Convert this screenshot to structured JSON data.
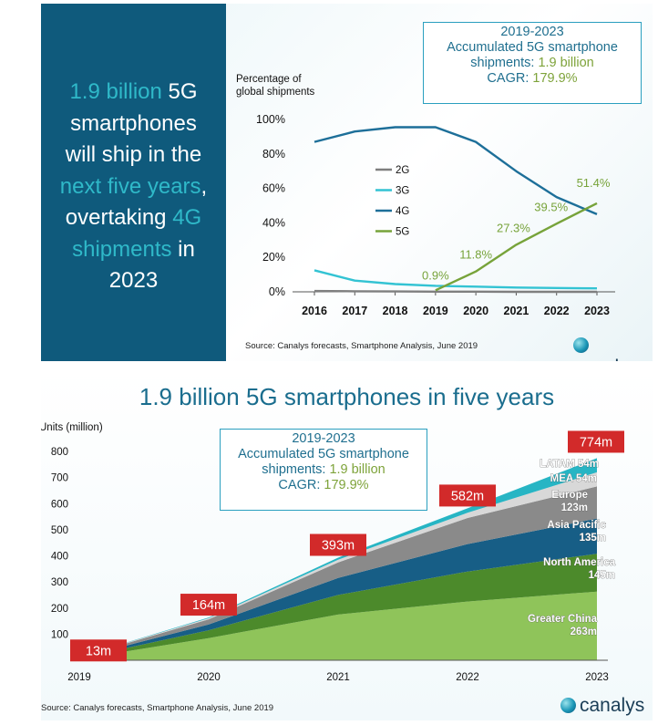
{
  "top": {
    "headline": [
      {
        "text": "1.9 billion",
        "hl": true
      },
      {
        "text": " 5G",
        "hl": false
      },
      {
        "br": true
      },
      {
        "text": "smartphones",
        "hl": false
      },
      {
        "br": true
      },
      {
        "text": "will ship in the",
        "hl": false
      },
      {
        "br": true
      },
      {
        "text": "next five years",
        "hl": true
      },
      {
        "text": ",",
        "hl": false
      },
      {
        "br": true
      },
      {
        "text": "overtaking ",
        "hl": false
      },
      {
        "text": "4G",
        "hl": true
      },
      {
        "br": true
      },
      {
        "text": "shipments",
        "hl": true
      },
      {
        "text": " in",
        "hl": false
      },
      {
        "br": true
      },
      {
        "text": "2023",
        "hl": false
      }
    ],
    "callout": {
      "line1": "2019-2023",
      "line2": "Accumulated 5G smartphone",
      "line3_prefix": "shipments: ",
      "line3_value": "1.9 billion",
      "line4_prefix": "CAGR: ",
      "line4_value": "179.9%"
    },
    "source": "Source: Canalys forecasts, Smartphone Analysis, June 2019",
    "logo_text": "canalys"
  },
  "bottom": {
    "title": "1.9 billion 5G smartphones in five years",
    "callout": {
      "line1": "2019-2023",
      "line2": "Accumulated 5G smartphone",
      "line3_prefix": "shipments: ",
      "line3_value": "1.9 billion",
      "line4_prefix": "CAGR: ",
      "line4_value": "179.9%"
    },
    "source": "Source: Canalys forecasts, Smartphone Analysis, June 2019",
    "logo_text": "canalys"
  },
  "chart_data": [
    {
      "type": "line",
      "ylabel": "Percentage of global shipments",
      "x": [
        2016,
        2017,
        2018,
        2019,
        2020,
        2021,
        2022,
        2023
      ],
      "ylim": [
        0,
        100
      ],
      "yticks": [
        "0%",
        "20%",
        "40%",
        "60%",
        "80%",
        "100%"
      ],
      "xticks": [
        "2016",
        "2017",
        "2018",
        "2019",
        "2020",
        "2021",
        "2022",
        "2023"
      ],
      "series": [
        {
          "name": "2G",
          "color": "#7f7f7f",
          "values": [
            0.5,
            0.3,
            0.2,
            0.1,
            0.1,
            0,
            0,
            0
          ]
        },
        {
          "name": "3G",
          "color": "#33c3d3",
          "values": [
            12.5,
            6.5,
            4.5,
            3.5,
            3,
            2.5,
            2.2,
            2
          ]
        },
        {
          "name": "4G",
          "color": "#1d6f99",
          "values": [
            87,
            93,
            95.5,
            95.5,
            87,
            70,
            55,
            45
          ]
        },
        {
          "name": "5G",
          "x": [
            2019,
            2020,
            2021,
            2022,
            2023
          ],
          "color": "#77a33a",
          "values": [
            0.9,
            11.8,
            27.3,
            39.5,
            51.4
          ]
        }
      ],
      "data_labels": [
        {
          "x": 2019,
          "text": "0.9%"
        },
        {
          "x": 2020,
          "text": "11.8%"
        },
        {
          "x": 2021,
          "text": "27.3%"
        },
        {
          "x": 2022,
          "text": "39.5%"
        },
        {
          "x": 2023,
          "text": "51.4%"
        }
      ],
      "legend": "center"
    },
    {
      "type": "area",
      "stacked": true,
      "ylabel": "Units (million)",
      "x": [
        "2019",
        "2020",
        "2021",
        "2022",
        "2023"
      ],
      "ylim": [
        0,
        800
      ],
      "yticks": [
        100,
        200,
        300,
        400,
        500,
        600,
        700,
        800
      ],
      "totals": [
        13,
        164,
        393,
        582,
        774
      ],
      "total_labels": [
        "13m",
        "164m",
        "393m",
        "582m",
        "774m"
      ],
      "series": [
        {
          "name": "Greater China",
          "label_value": "263m",
          "color": "#8fc45a",
          "values": [
            5,
            85,
            175,
            225,
            263
          ]
        },
        {
          "name": "North America",
          "label_value": "145m",
          "color": "#4c8a2b",
          "values": [
            3,
            30,
            75,
            115,
            145
          ]
        },
        {
          "name": "Asia Pacific",
          "label_value": "135m",
          "color": "#175e86",
          "values": [
            2,
            22,
            65,
            105,
            135
          ]
        },
        {
          "name": "Europe",
          "label_value": "123m",
          "color": "#8a8a8a",
          "values": [
            2,
            20,
            60,
            100,
            123
          ]
        },
        {
          "name": "MEA",
          "label_value": "54m",
          "color": "#d8d8d8",
          "values": [
            0.5,
            4,
            10,
            20,
            54
          ]
        },
        {
          "name": "LATAM",
          "label_value": "54m",
          "color": "#27b5c4",
          "values": [
            0.5,
            3,
            8,
            17,
            54
          ]
        }
      ]
    }
  ]
}
